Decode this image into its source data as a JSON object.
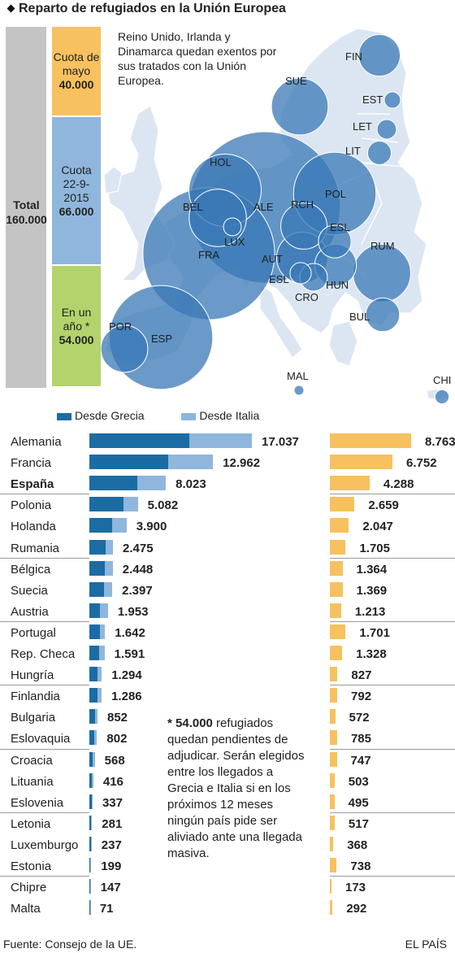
{
  "title": "Reparto de refugiados en la Unión Europea",
  "total": {
    "label": "Total",
    "value": "160.000"
  },
  "quota_column": [
    {
      "label": "Cuota de mayo",
      "value": "40.000",
      "share": 40000,
      "color": "#f7c15f"
    },
    {
      "label": "Cuota 22-9-2015",
      "value": "66.000",
      "share": 66000,
      "color": "#8fb6dc"
    },
    {
      "label": "En un año *",
      "value": "54.000",
      "share": 54000,
      "color": "#b3d36d"
    }
  ],
  "map_note": "Reino Unido, Irlanda y Dinamarca quedan exentos por sus tratados con la Unión Europea.",
  "map_labels": [
    "FIN",
    "SUE",
    "EST",
    "LET",
    "LIT",
    "HOL",
    "POL",
    "ALE",
    "RCH",
    "BÉL",
    "ESL",
    "LUX",
    "RUM",
    "FRA",
    "AUT",
    "ESL",
    "HUN",
    "CRO",
    "BUL",
    "POR",
    "ESP",
    "MAL",
    "CHI"
  ],
  "legend": {
    "greece": "Desde Grecia",
    "italy": "Desde Italia"
  },
  "colors": {
    "greece": "#1b6ca3",
    "italy": "#8fb6dc",
    "may_quota": "#f7c15f",
    "remaining": "#b3d36d",
    "total": "#c4c4c4",
    "map_land": "#dbe6f2",
    "bubble": "#3a78b5"
  },
  "chart_data": {
    "type": "bar",
    "title": "Reparto de refugiados en la Unión Europea",
    "series": [
      {
        "name": "Desde Grecia",
        "values": [
          10500,
          8300,
          5000,
          3600,
          2400,
          1700,
          1600,
          1500,
          1100,
          1100,
          1000,
          850,
          830,
          560,
          540,
          370,
          290,
          240,
          170,
          140,
          120,
          100,
          50
        ]
      },
      {
        "name": "Desde Italia",
        "values": [
          6537,
          4662,
          3023,
          1482,
          1500,
          775,
          848,
          897,
          853,
          542,
          591,
          444,
          456,
          292,
          262,
          198,
          126,
          97,
          111,
          97,
          79,
          47,
          21
        ]
      },
      {
        "name": "Cuota de mayo",
        "values": [
          8763,
          6752,
          4288,
          2659,
          2047,
          1705,
          1364,
          1369,
          1213,
          1701,
          1328,
          827,
          792,
          572,
          785,
          747,
          503,
          495,
          517,
          368,
          738,
          173,
          292
        ]
      }
    ],
    "categories": [
      "Alemania",
      "Francia",
      "España",
      "Polonia",
      "Holanda",
      "Rumania",
      "Bélgica",
      "Suecia",
      "Austria",
      "Portugal",
      "Rep. Checa",
      "Hungría",
      "Finlandia",
      "Bulgaria",
      "Eslovaquia",
      "Croacia",
      "Lituania",
      "Eslovenia",
      "Letonia",
      "Luxemburgo",
      "Estonia",
      "Chipre",
      "Malta"
    ],
    "totals_label": [
      "17.037",
      "12.962",
      "8.023",
      "5.082",
      "3.900",
      "2.475",
      "2.448",
      "2.397",
      "1.953",
      "1.642",
      "1.591",
      "1.294",
      "1.286",
      "852",
      "802",
      "568",
      "416",
      "337",
      "281",
      "237",
      "199",
      "147",
      "71"
    ],
    "may_label": [
      "8.763",
      "6.752",
      "4.288",
      "2.659",
      "2.047",
      "1.705",
      "1.364",
      "1.369",
      "1.213",
      "1.701",
      "1.328",
      "827",
      "792",
      "572",
      "785",
      "747",
      "503",
      "495",
      "517",
      "368",
      "738",
      "173",
      "292"
    ],
    "bold_category": "España"
  },
  "footnote_bold": "* 54.000",
  "footnote": " refugiados quedan pendientes de adjudicar. Serán elegidos entre los llegados a Grecia e Italia si en los próximos 12 meses ningún país pide ser aliviado ante una llegada masiva.",
  "source": "Fuente: Consejo de la UE.",
  "brand": "EL PAÍS"
}
